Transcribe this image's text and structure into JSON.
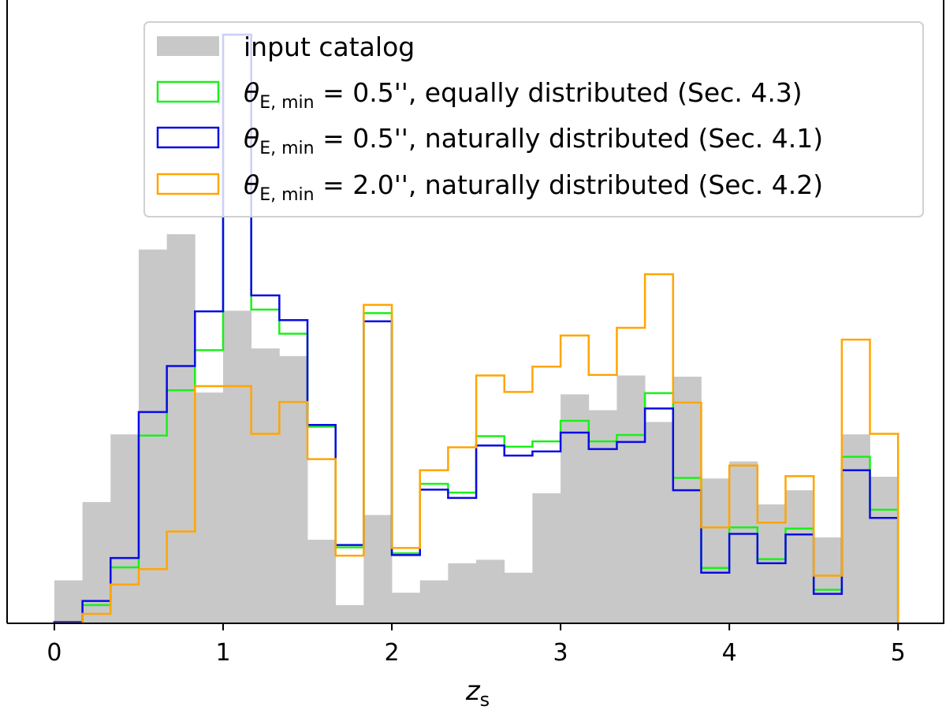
{
  "chart_data": {
    "type": "histogram",
    "xlabel": "z",
    "xlabel_sub": "s",
    "xlim": [
      -0.28,
      5.27
    ],
    "ylim": [
      0,
      1.0
    ],
    "xticks": [
      0,
      1,
      2,
      3,
      4,
      5
    ],
    "xtick_labels": [
      "0",
      "1",
      "2",
      "3",
      "4",
      "5"
    ],
    "ytick_labels": [],
    "bin_edges": [
      0,
      0.1667,
      0.3333,
      0.5,
      0.6667,
      0.8333,
      1.0,
      1.1667,
      1.3333,
      1.5,
      1.6667,
      1.8333,
      2.0,
      2.1667,
      2.3333,
      2.5,
      2.6667,
      2.8333,
      3.0,
      3.1667,
      3.3333,
      3.5,
      3.6667,
      3.8333,
      4.0,
      4.1667,
      4.3333,
      4.5,
      4.6667,
      4.8333,
      5.0
    ],
    "series": [
      {
        "name": "input catalog",
        "style": "filled",
        "color": "#c8c8c8",
        "values": [
          0.073,
          0.206,
          0.321,
          0.635,
          0.661,
          0.392,
          0.531,
          0.467,
          0.454,
          0.142,
          0.031,
          0.184,
          0.052,
          0.073,
          0.102,
          0.108,
          0.086,
          0.221,
          0.389,
          0.362,
          0.421,
          0.342,
          0.419,
          0.246,
          0.275,
          0.202,
          0.226,
          0.146,
          0.321,
          0.249
        ]
      },
      {
        "name": "equally distributed (Sec. 4.3)",
        "style": "step",
        "color": "#1af01a",
        "values": [
          0.002,
          0.031,
          0.095,
          0.319,
          0.396,
          0.464,
          1.0,
          0.533,
          0.492,
          0.334,
          0.129,
          0.527,
          0.119,
          0.237,
          0.222,
          0.318,
          0.3,
          0.309,
          0.344,
          0.309,
          0.32,
          0.391,
          0.247,
          0.094,
          0.163,
          0.109,
          0.161,
          0.057,
          0.283,
          0.193
        ]
      },
      {
        "name": "naturally distributed (Sec. 4.1)",
        "style": "step",
        "color": "#0a0ae6",
        "values": [
          0.002,
          0.038,
          0.111,
          0.359,
          0.437,
          0.53,
          1.0,
          0.557,
          0.515,
          0.337,
          0.133,
          0.513,
          0.116,
          0.227,
          0.213,
          0.302,
          0.285,
          0.292,
          0.324,
          0.296,
          0.308,
          0.365,
          0.226,
          0.086,
          0.152,
          0.102,
          0.151,
          0.05,
          0.26,
          0.179
        ]
      },
      {
        "name": "naturally distributed (Sec. 4.2)",
        "style": "step",
        "color": "#ffa500",
        "values": [
          0.0,
          0.016,
          0.066,
          0.092,
          0.156,
          0.403,
          0.403,
          0.322,
          0.376,
          0.279,
          0.115,
          0.541,
          0.128,
          0.26,
          0.299,
          0.421,
          0.393,
          0.436,
          0.489,
          0.422,
          0.502,
          0.593,
          0.375,
          0.163,
          0.268,
          0.171,
          0.25,
          0.081,
          0.482,
          0.322
        ]
      }
    ],
    "legend": {
      "placement": "top-right",
      "entries": [
        {
          "label": "input catalog"
        },
        {
          "label_sym": "θ",
          "label_sub": "E, min",
          "label_eq": " = 0.5'', equally distributed (Sec. 4.3)"
        },
        {
          "label_sym": "θ",
          "label_sub": "E, min",
          "label_eq": " = 0.5'', naturally distributed (Sec. 4.1)"
        },
        {
          "label_sym": "θ",
          "label_sub": "E, min",
          "label_eq": " = 2.0'', naturally distributed (Sec. 4.2)"
        }
      ]
    }
  }
}
